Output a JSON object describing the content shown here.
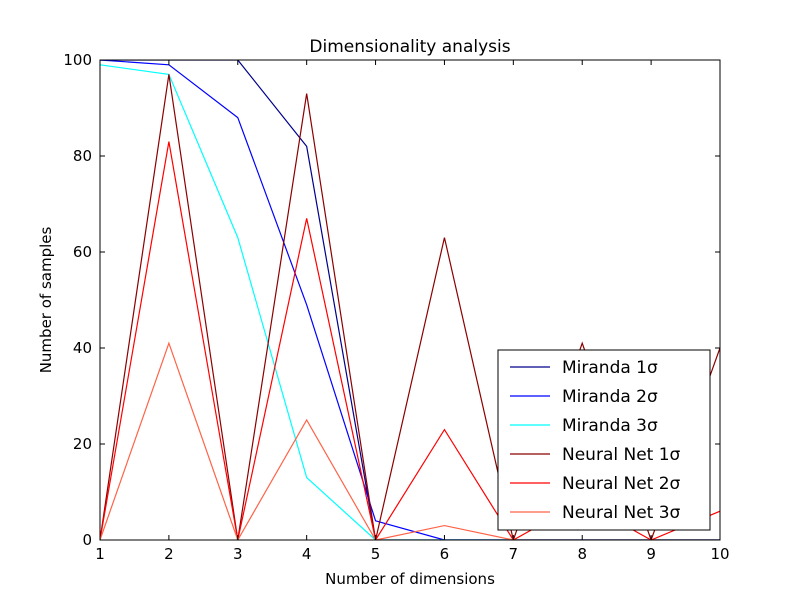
{
  "chart_data": {
    "type": "line",
    "title": "Dimensionality analysis",
    "xlabel": "Number of dimensions",
    "ylabel": "Number of samples",
    "xlim": [
      1,
      10
    ],
    "ylim": [
      0,
      100
    ],
    "xticks": [
      1,
      2,
      3,
      4,
      5,
      6,
      7,
      8,
      9,
      10
    ],
    "yticks": [
      0,
      20,
      40,
      60,
      80,
      100
    ],
    "grid": false,
    "legend_position": "bottom-right",
    "x": [
      1,
      2,
      3,
      4,
      5,
      6,
      7,
      8,
      9,
      10
    ],
    "series": [
      {
        "name": "Miranda 1σ",
        "color": "#00008b",
        "values": [
          100,
          100,
          100,
          82,
          0,
          0,
          0,
          0,
          0,
          0
        ]
      },
      {
        "name": "Miranda 2σ",
        "color": "#0000ff",
        "values": [
          100,
          99,
          88,
          49,
          4,
          0,
          0,
          0,
          0,
          0
        ]
      },
      {
        "name": "Miranda 3σ",
        "color": "#00ffff",
        "values": [
          99,
          97,
          63,
          13,
          0,
          0,
          0,
          0,
          0,
          0
        ]
      },
      {
        "name": "Neural Net 1σ",
        "color": "#8b0000",
        "values": [
          0,
          97,
          0,
          93,
          0,
          63,
          0,
          41,
          0,
          40
        ]
      },
      {
        "name": "Neural Net 2σ",
        "color": "#ff0000",
        "values": [
          0,
          83,
          0,
          67,
          0,
          23,
          0,
          8,
          0,
          6
        ]
      },
      {
        "name": "Neural Net 3σ",
        "color": "#ff6347",
        "values": [
          0,
          41,
          0,
          25,
          0,
          3,
          0,
          0,
          0,
          0
        ]
      }
    ]
  }
}
